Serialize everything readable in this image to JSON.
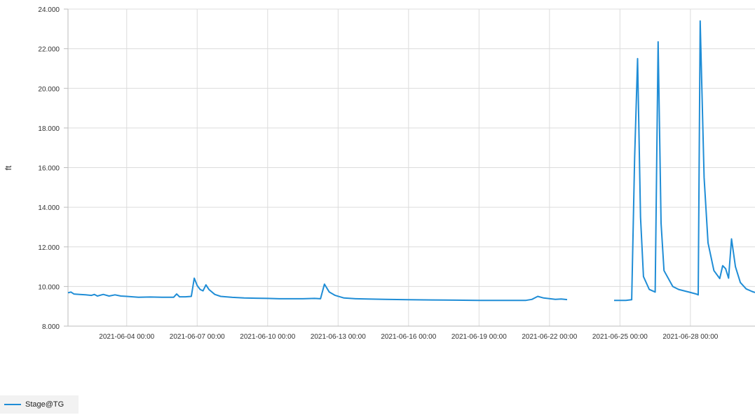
{
  "chart_data": {
    "type": "line",
    "title": "",
    "xlabel": "",
    "ylabel": "ft",
    "ylim": [
      8,
      24
    ],
    "yticks": [
      8,
      10,
      12,
      14,
      16,
      18,
      20,
      22,
      24
    ],
    "ytick_labels": [
      "8.000",
      "10.000",
      "12.000",
      "14.000",
      "16.000",
      "18.000",
      "20.000",
      "22.000",
      "24.000"
    ],
    "xlim": [
      "2021-06-01 12:00",
      "2021-06-30 18:00"
    ],
    "xticks": [
      "2021-06-04 00:00",
      "2021-06-07 00:00",
      "2021-06-10 00:00",
      "2021-06-13 00:00",
      "2021-06-16 00:00",
      "2021-06-19 00:00",
      "2021-06-22 00:00",
      "2021-06-25 00:00",
      "2021-06-28 00:00"
    ],
    "grid": true,
    "legend_position": "bottom-left",
    "series": [
      {
        "name": "Stage@TG",
        "color": "#1f8dd6",
        "segments": [
          [
            [
              "2021-06-01 12:00",
              9.68
            ],
            [
              "2021-06-01 15:00",
              9.72
            ],
            [
              "2021-06-01 18:00",
              9.62
            ],
            [
              "2021-06-02 00:00",
              9.6
            ],
            [
              "2021-06-02 06:00",
              9.58
            ],
            [
              "2021-06-02 12:00",
              9.55
            ],
            [
              "2021-06-02 15:00",
              9.6
            ],
            [
              "2021-06-02 18:00",
              9.52
            ],
            [
              "2021-06-03 00:00",
              9.6
            ],
            [
              "2021-06-03 06:00",
              9.52
            ],
            [
              "2021-06-03 12:00",
              9.58
            ],
            [
              "2021-06-03 18:00",
              9.52
            ],
            [
              "2021-06-04 00:00",
              9.5
            ],
            [
              "2021-06-04 12:00",
              9.46
            ],
            [
              "2021-06-05 00:00",
              9.47
            ],
            [
              "2021-06-05 12:00",
              9.46
            ],
            [
              "2021-06-06 00:00",
              9.46
            ],
            [
              "2021-06-06 03:00",
              9.62
            ],
            [
              "2021-06-06 06:00",
              9.48
            ],
            [
              "2021-06-06 12:00",
              9.48
            ],
            [
              "2021-06-06 18:00",
              9.5
            ],
            [
              "2021-06-06 21:00",
              10.42
            ],
            [
              "2021-06-07 00:00",
              10.05
            ],
            [
              "2021-06-07 03:00",
              9.85
            ],
            [
              "2021-06-07 06:00",
              9.78
            ],
            [
              "2021-06-07 09:00",
              10.08
            ],
            [
              "2021-06-07 12:00",
              9.85
            ],
            [
              "2021-06-07 18:00",
              9.6
            ],
            [
              "2021-06-08 00:00",
              9.5
            ],
            [
              "2021-06-08 12:00",
              9.45
            ],
            [
              "2021-06-09 00:00",
              9.42
            ],
            [
              "2021-06-09 12:00",
              9.41
            ],
            [
              "2021-06-10 00:00",
              9.4
            ],
            [
              "2021-06-10 12:00",
              9.38
            ],
            [
              "2021-06-11 00:00",
              9.38
            ],
            [
              "2021-06-11 12:00",
              9.38
            ],
            [
              "2021-06-12 00:00",
              9.4
            ],
            [
              "2021-06-12 06:00",
              9.38
            ],
            [
              "2021-06-12 10:00",
              10.12
            ],
            [
              "2021-06-12 15:00",
              9.72
            ],
            [
              "2021-06-12 21:00",
              9.55
            ],
            [
              "2021-06-13 06:00",
              9.42
            ],
            [
              "2021-06-13 18:00",
              9.38
            ],
            [
              "2021-06-14 06:00",
              9.37
            ],
            [
              "2021-06-15 00:00",
              9.35
            ],
            [
              "2021-06-16 00:00",
              9.33
            ],
            [
              "2021-06-17 00:00",
              9.32
            ],
            [
              "2021-06-18 00:00",
              9.31
            ],
            [
              "2021-06-19 00:00",
              9.3
            ],
            [
              "2021-06-20 00:00",
              9.3
            ],
            [
              "2021-06-21 00:00",
              9.3
            ],
            [
              "2021-06-21 06:00",
              9.35
            ],
            [
              "2021-06-21 12:00",
              9.5
            ],
            [
              "2021-06-21 18:00",
              9.42
            ],
            [
              "2021-06-22 06:00",
              9.35
            ],
            [
              "2021-06-22 12:00",
              9.37
            ],
            [
              "2021-06-22 18:00",
              9.34
            ]
          ],
          [
            [
              "2021-06-24 18:00",
              9.3
            ],
            [
              "2021-06-25 06:00",
              9.3
            ],
            [
              "2021-06-25 12:00",
              9.33
            ],
            [
              "2021-06-25 15:00",
              16.5
            ],
            [
              "2021-06-25 18:00",
              21.5
            ],
            [
              "2021-06-25 21:00",
              13.5
            ],
            [
              "2021-06-26 00:00",
              10.5
            ],
            [
              "2021-06-26 06:00",
              9.85
            ],
            [
              "2021-06-26 12:00",
              9.72
            ],
            [
              "2021-06-26 15:00",
              22.35
            ],
            [
              "2021-06-26 18:00",
              13.2
            ],
            [
              "2021-06-26 21:00",
              10.8
            ],
            [
              "2021-06-27 06:00",
              10.0
            ],
            [
              "2021-06-27 12:00",
              9.85
            ],
            [
              "2021-06-28 00:00",
              9.7
            ],
            [
              "2021-06-28 06:00",
              9.62
            ],
            [
              "2021-06-28 08:00",
              9.58
            ],
            [
              "2021-06-28 10:00",
              23.4
            ],
            [
              "2021-06-28 14:00",
              15.5
            ],
            [
              "2021-06-28 18:00",
              12.2
            ],
            [
              "2021-06-29 00:00",
              10.8
            ],
            [
              "2021-06-29 06:00",
              10.4
            ],
            [
              "2021-06-29 09:00",
              11.05
            ],
            [
              "2021-06-29 12:00",
              10.9
            ],
            [
              "2021-06-29 15:00",
              10.42
            ],
            [
              "2021-06-29 18:00",
              12.4
            ],
            [
              "2021-06-29 22:00",
              11.0
            ],
            [
              "2021-06-30 03:00",
              10.2
            ],
            [
              "2021-06-30 09:00",
              9.88
            ],
            [
              "2021-06-30 15:00",
              9.75
            ],
            [
              "2021-06-30 18:00",
              9.7
            ]
          ]
        ]
      }
    ]
  },
  "legend": {
    "items": [
      {
        "label": "Stage@TG",
        "color": "#1f8dd6"
      }
    ]
  }
}
